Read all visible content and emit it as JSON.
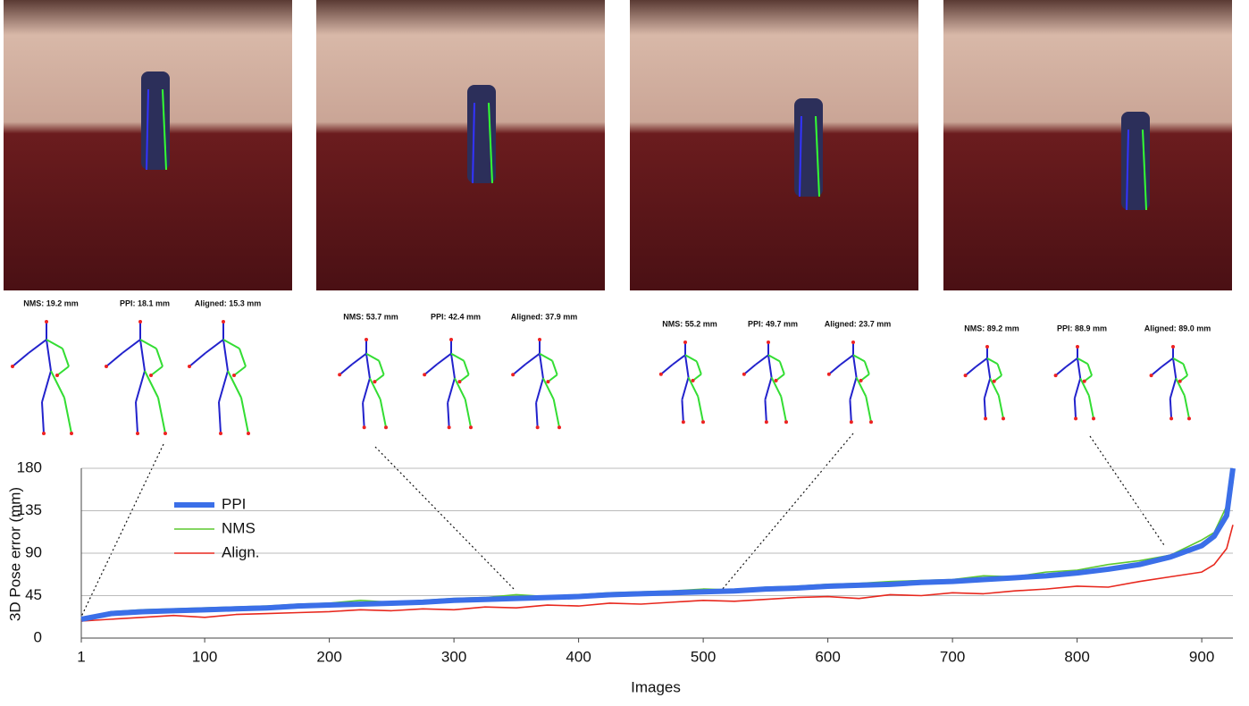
{
  "panels": [
    {
      "labels": [
        "NMS: 19.2 mm",
        "PPI: 18.1 mm",
        "Aligned: 15.3 mm"
      ]
    },
    {
      "labels": [
        "NMS: 53.7 mm",
        "PPI: 42.4 mm",
        "Aligned: 37.9 mm"
      ]
    },
    {
      "labels": [
        "NMS: 55.2 mm",
        "PPI: 49.7 mm",
        "Aligned: 23.7 mm"
      ]
    },
    {
      "labels": [
        "NMS: 89.2 mm",
        "PPI: 88.9 mm",
        "Aligned: 89.0 mm"
      ]
    }
  ],
  "chart_data": {
    "type": "line",
    "x_label": "Images",
    "y_label": "3D Pose error (mm)",
    "x": [
      1,
      25,
      50,
      75,
      100,
      125,
      150,
      175,
      200,
      225,
      250,
      275,
      300,
      325,
      350,
      375,
      400,
      425,
      450,
      475,
      500,
      525,
      550,
      575,
      600,
      625,
      650,
      675,
      700,
      725,
      750,
      775,
      800,
      825,
      850,
      875,
      900,
      910,
      920,
      925
    ],
    "series": [
      {
        "name": "PPI",
        "color": "#3b6fe8",
        "values": [
          20,
          26,
          28,
          29,
          30,
          31,
          32,
          34,
          35,
          36,
          37,
          38,
          40,
          41,
          42,
          43,
          44,
          46,
          47,
          48,
          49,
          50,
          52,
          53,
          55,
          56,
          57,
          59,
          60,
          62,
          64,
          66,
          69,
          73,
          78,
          86,
          98,
          108,
          130,
          180
        ]
      },
      {
        "name": "NMS",
        "color": "#5cc82e",
        "values": [
          21,
          28,
          30,
          31,
          32,
          33,
          34,
          36,
          37,
          40,
          38,
          40,
          42,
          43,
          46,
          44,
          46,
          48,
          49,
          50,
          52,
          51,
          54,
          55,
          57,
          58,
          60,
          61,
          62,
          66,
          65,
          70,
          72,
          78,
          82,
          88,
          104,
          112,
          140,
          165
        ]
      },
      {
        "name": "Align.",
        "color": "#e8281e",
        "values": [
          18,
          20,
          22,
          24,
          22,
          25,
          26,
          27,
          28,
          30,
          29,
          31,
          30,
          33,
          32,
          35,
          34,
          37,
          36,
          38,
          40,
          39,
          41,
          43,
          44,
          42,
          46,
          45,
          48,
          47,
          50,
          52,
          55,
          54,
          60,
          65,
          70,
          78,
          95,
          120
        ]
      }
    ],
    "xlim": [
      1,
      925
    ],
    "ylim": [
      0,
      180
    ],
    "xticks": [
      1,
      100,
      200,
      300,
      400,
      500,
      600,
      700,
      800,
      900
    ],
    "yticks": [
      0,
      45,
      90,
      135,
      180
    ],
    "grid": true,
    "legend": "upper left"
  }
}
